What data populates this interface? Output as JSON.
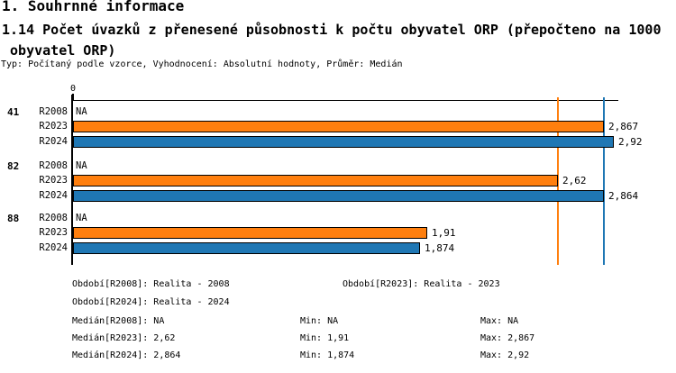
{
  "header": {
    "title": "1. Souhrnné informace",
    "subtitle": "1.14 Počet úvazků z přenesené působnosti k počtu obyvatel ORP (přepočteno na 1000\n obyvatel ORP)",
    "meta": "Typ: Počítaný podle vzorce, Vyhodnocení: Absolutní hodnoty, Průměr: Medián"
  },
  "chart_data": {
    "type": "bar",
    "orientation": "horizontal",
    "title": "1.14 Počet úvazků z přenesené působnosti k počtu obyvatel ORP (přepočteno na 1000 obyvatel ORP)",
    "value_axis": {
      "zero_label": "0",
      "min": 0,
      "max": 2.95,
      "grid": false
    },
    "series": [
      {
        "name": "R2008",
        "color": null,
        "period": "Realita - 2008"
      },
      {
        "name": "R2023",
        "color": "#ff7f0e",
        "period": "Realita - 2023"
      },
      {
        "name": "R2024",
        "color": "#1f77b4",
        "period": "Realita - 2024"
      }
    ],
    "groups": [
      {
        "label": "41",
        "values": [
          {
            "series": "R2008",
            "value": null,
            "display": "NA"
          },
          {
            "series": "R2023",
            "value": 2.867,
            "display": "2,867"
          },
          {
            "series": "R2024",
            "value": 2.92,
            "display": "2,92"
          }
        ]
      },
      {
        "label": "82",
        "values": [
          {
            "series": "R2008",
            "value": null,
            "display": "NA"
          },
          {
            "series": "R2023",
            "value": 2.62,
            "display": "2,62"
          },
          {
            "series": "R2024",
            "value": 2.864,
            "display": "2,864"
          }
        ]
      },
      {
        "label": "88",
        "values": [
          {
            "series": "R2008",
            "value": null,
            "display": "NA"
          },
          {
            "series": "R2023",
            "value": 1.91,
            "display": "1,91"
          },
          {
            "series": "R2024",
            "value": 1.874,
            "display": "1,874"
          }
        ]
      }
    ],
    "median_lines": [
      {
        "series": "R2023",
        "value": 2.62,
        "color": "#ff7f0e"
      },
      {
        "series": "R2024",
        "value": 2.864,
        "color": "#1f77b4"
      }
    ]
  },
  "legend": {
    "items": [
      "Období[R2008]: Realita - 2008",
      "Období[R2023]: Realita - 2023",
      "Období[R2024]: Realita - 2024"
    ]
  },
  "stats": {
    "rows": [
      {
        "median": "Medián[R2008]: NA",
        "min": "Min: NA",
        "max": "Max: NA"
      },
      {
        "median": "Medián[R2023]: 2,62",
        "min": "Min: 1,91",
        "max": "Max: 2,867"
      },
      {
        "median": "Medián[R2024]: 2,864",
        "min": "Min: 1,874",
        "max": "Max: 2,92"
      }
    ]
  }
}
